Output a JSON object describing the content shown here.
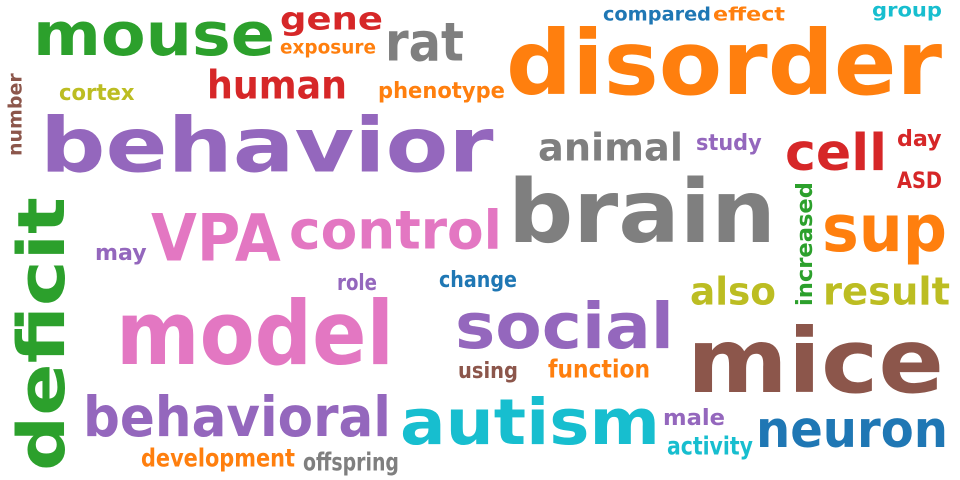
{
  "colors": {
    "green": "#2ca02c",
    "red": "#d62728",
    "orange": "#ff7f0e",
    "gray": "#7f7f7f",
    "purple": "#9467bd",
    "pink": "#e377c2",
    "brown": "#8c564b",
    "olive": "#bcbd22",
    "cyan": "#17becf",
    "blue": "#1f77b4"
  },
  "words": [
    {
      "text": "mouse",
      "color": "green"
    },
    {
      "text": "gene",
      "color": "red"
    },
    {
      "text": "exposure",
      "color": "orange"
    },
    {
      "text": "rat",
      "color": "gray"
    },
    {
      "text": "compared",
      "color": "blue"
    },
    {
      "text": "effect",
      "color": "orange"
    },
    {
      "text": "group",
      "color": "cyan"
    },
    {
      "text": "disorder",
      "color": "orange"
    },
    {
      "text": "number",
      "color": "brown"
    },
    {
      "text": "cortex",
      "color": "olive"
    },
    {
      "text": "human",
      "color": "red"
    },
    {
      "text": "phenotype",
      "color": "orange"
    },
    {
      "text": "behavior",
      "color": "purple"
    },
    {
      "text": "animal",
      "color": "gray"
    },
    {
      "text": "study",
      "color": "purple"
    },
    {
      "text": "cell",
      "color": "red"
    },
    {
      "text": "day",
      "color": "red"
    },
    {
      "text": "ASD",
      "color": "red"
    },
    {
      "text": "brain",
      "color": "gray"
    },
    {
      "text": "deficit",
      "color": "green"
    },
    {
      "text": "VPA",
      "color": "pink"
    },
    {
      "text": "control",
      "color": "pink"
    },
    {
      "text": "increased",
      "color": "green"
    },
    {
      "text": "sup",
      "color": "orange"
    },
    {
      "text": "may",
      "color": "purple"
    },
    {
      "text": "role",
      "color": "purple"
    },
    {
      "text": "change",
      "color": "blue"
    },
    {
      "text": "also",
      "color": "olive"
    },
    {
      "text": "result",
      "color": "olive"
    },
    {
      "text": "model",
      "color": "pink"
    },
    {
      "text": "social",
      "color": "purple"
    },
    {
      "text": "mice",
      "color": "brown"
    },
    {
      "text": "using",
      "color": "brown"
    },
    {
      "text": "function",
      "color": "orange"
    },
    {
      "text": "behavioral",
      "color": "purple"
    },
    {
      "text": "autism",
      "color": "cyan"
    },
    {
      "text": "male",
      "color": "purple"
    },
    {
      "text": "neuron",
      "color": "blue"
    },
    {
      "text": "activity",
      "color": "cyan"
    },
    {
      "text": "development",
      "color": "orange"
    },
    {
      "text": "offspring",
      "color": "gray"
    }
  ]
}
